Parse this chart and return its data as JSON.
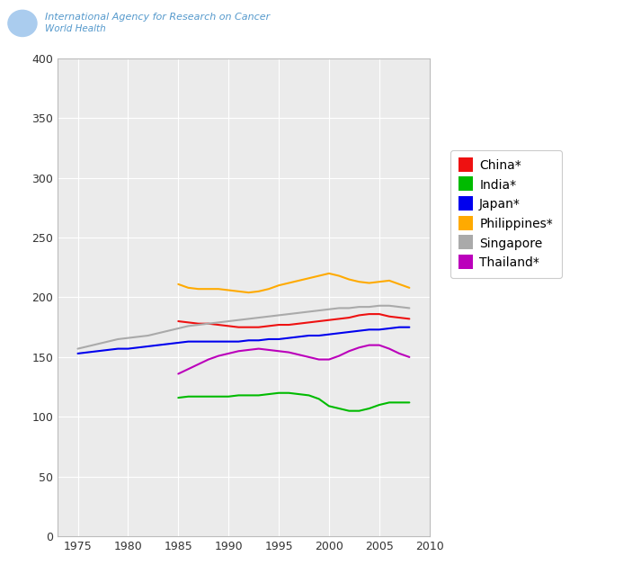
{
  "title_top": "International Agency for Research on Cancer",
  "title_sub": "World Health",
  "plot_bg_color": "#ebebeb",
  "fig_bg_color": "#ffffff",
  "xlim": [
    1973,
    2010
  ],
  "ylim": [
    0,
    400
  ],
  "yticks": [
    0,
    50,
    100,
    150,
    200,
    250,
    300,
    350,
    400
  ],
  "xticks": [
    1975,
    1980,
    1985,
    1990,
    1995,
    2000,
    2005,
    2010
  ],
  "xtick_labels": [
    "1975",
    "1980",
    "1985",
    "1990",
    "1995",
    "2000",
    "2005",
    "2010"
  ],
  "series": {
    "China*": {
      "color": "#ee1111",
      "x": [
        1985,
        1986,
        1987,
        1988,
        1989,
        1990,
        1991,
        1992,
        1993,
        1994,
        1995,
        1996,
        1997,
        1998,
        1999,
        2000,
        2001,
        2002,
        2003,
        2004,
        2005,
        2006,
        2007,
        2008
      ],
      "y": [
        180,
        179,
        178,
        178,
        177,
        176,
        175,
        175,
        175,
        176,
        177,
        177,
        178,
        179,
        180,
        181,
        182,
        183,
        185,
        186,
        186,
        184,
        183,
        182
      ]
    },
    "India*": {
      "color": "#00bb00",
      "x": [
        1985,
        1986,
        1987,
        1988,
        1989,
        1990,
        1991,
        1992,
        1993,
        1994,
        1995,
        1996,
        1997,
        1998,
        1999,
        2000,
        2001,
        2002,
        2003,
        2004,
        2005,
        2006,
        2007,
        2008
      ],
      "y": [
        116,
        117,
        117,
        117,
        117,
        117,
        118,
        118,
        118,
        119,
        120,
        120,
        119,
        118,
        115,
        109,
        107,
        105,
        105,
        107,
        110,
        112,
        112,
        112
      ]
    },
    "Japan*": {
      "color": "#0000ee",
      "x": [
        1975,
        1976,
        1977,
        1978,
        1979,
        1980,
        1981,
        1982,
        1983,
        1984,
        1985,
        1986,
        1987,
        1988,
        1989,
        1990,
        1991,
        1992,
        1993,
        1994,
        1995,
        1996,
        1997,
        1998,
        1999,
        2000,
        2001,
        2002,
        2003,
        2004,
        2005,
        2006,
        2007,
        2008
      ],
      "y": [
        153,
        154,
        155,
        156,
        157,
        157,
        158,
        159,
        160,
        161,
        162,
        163,
        163,
        163,
        163,
        163,
        163,
        164,
        164,
        165,
        165,
        166,
        167,
        168,
        168,
        169,
        170,
        171,
        172,
        173,
        173,
        174,
        175,
        175
      ]
    },
    "Philippines*": {
      "color": "#ffaa00",
      "x": [
        1985,
        1986,
        1987,
        1988,
        1989,
        1990,
        1991,
        1992,
        1993,
        1994,
        1995,
        1996,
        1997,
        1998,
        1999,
        2000,
        2001,
        2002,
        2003,
        2004,
        2005,
        2006,
        2007,
        2008
      ],
      "y": [
        211,
        208,
        207,
        207,
        207,
        206,
        205,
        204,
        205,
        207,
        210,
        212,
        214,
        216,
        218,
        220,
        218,
        215,
        213,
        212,
        213,
        214,
        211,
        208
      ]
    },
    "Singapore": {
      "color": "#aaaaaa",
      "x": [
        1975,
        1976,
        1977,
        1978,
        1979,
        1980,
        1981,
        1982,
        1983,
        1984,
        1985,
        1986,
        1987,
        1988,
        1989,
        1990,
        1991,
        1992,
        1993,
        1994,
        1995,
        1996,
        1997,
        1998,
        1999,
        2000,
        2001,
        2002,
        2003,
        2004,
        2005,
        2006,
        2007,
        2008
      ],
      "y": [
        157,
        159,
        161,
        163,
        165,
        166,
        167,
        168,
        170,
        172,
        174,
        176,
        177,
        178,
        179,
        180,
        181,
        182,
        183,
        184,
        185,
        186,
        187,
        188,
        189,
        190,
        191,
        191,
        192,
        192,
        193,
        193,
        192,
        191
      ]
    },
    "Thailand*": {
      "color": "#bb00bb",
      "x": [
        1985,
        1986,
        1987,
        1988,
        1989,
        1990,
        1991,
        1992,
        1993,
        1994,
        1995,
        1996,
        1997,
        1998,
        1999,
        2000,
        2001,
        2002,
        2003,
        2004,
        2005,
        2006,
        2007,
        2008
      ],
      "y": [
        136,
        140,
        144,
        148,
        151,
        153,
        155,
        156,
        157,
        156,
        155,
        154,
        152,
        150,
        148,
        148,
        151,
        155,
        158,
        160,
        160,
        157,
        153,
        150
      ]
    }
  },
  "legend_order": [
    "China*",
    "India*",
    "Japan*",
    "Philippines*",
    "Singapore",
    "Thailand*"
  ]
}
